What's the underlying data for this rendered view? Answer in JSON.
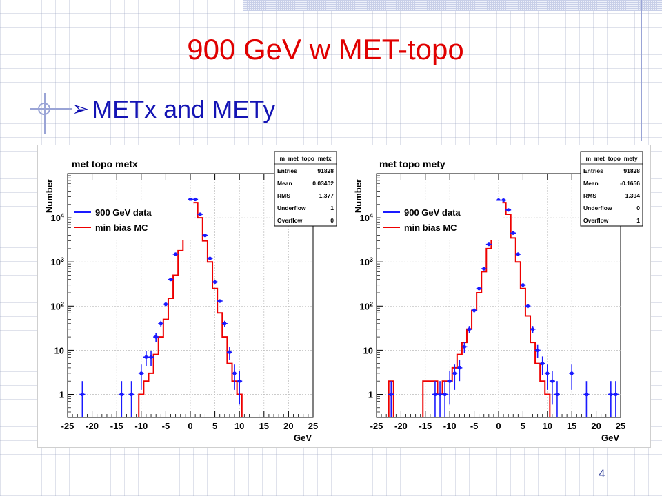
{
  "slide": {
    "title": "900 GeV w MET-topo",
    "bullet": "METx and METy",
    "page_number": "4"
  },
  "colors": {
    "title": "#e00000",
    "bullet_text": "#1414b4",
    "data_points": "#1a1aff",
    "mc_line": "#ee0000"
  },
  "chart_data": [
    {
      "type": "histogram",
      "title": "met topo metx",
      "xlabel": "GeV",
      "ylabel": "Number",
      "xlim": [
        -25,
        25
      ],
      "ylim": [
        0.3,
        100000
      ],
      "yscale": "log",
      "grid": true,
      "x_ticks": [
        "-25",
        "-20",
        "-15",
        "-10",
        "-5",
        "0",
        "5",
        "10",
        "15",
        "20",
        "25"
      ],
      "y_ticks": [
        "1",
        "10",
        "10²",
        "10³",
        "10⁴"
      ],
      "legend_position": "top-left",
      "legend": [
        "900 GeV data",
        "min bias MC"
      ],
      "stats": {
        "name": "m_met_topo_metx",
        "rows": [
          {
            "label": "Entries",
            "value": "91828"
          },
          {
            "label": "Mean",
            "value": "0.03402"
          },
          {
            "label": "RMS",
            "value": "1.377"
          },
          {
            "label": "Underflow",
            "value": "1"
          },
          {
            "label": "Overflow",
            "value": "0"
          }
        ]
      },
      "series": [
        {
          "name": "900 GeV data",
          "style": "points",
          "x": [
            -22,
            -14,
            -12,
            -10,
            -9,
            -8,
            -7,
            -6,
            -5,
            -4,
            -3,
            -2,
            -1,
            0,
            1,
            2,
            3,
            4,
            5,
            6,
            7,
            8,
            9,
            10
          ],
          "y": [
            1,
            1,
            1,
            3,
            7,
            7,
            20,
            40,
            110,
            400,
            1500,
            4500,
            16000,
            26000,
            26000,
            12000,
            4000,
            1200,
            350,
            130,
            40,
            9,
            3,
            2
          ]
        },
        {
          "name": "min bias MC",
          "style": "step",
          "bin_width": 1,
          "x": [
            -10,
            -9,
            -8,
            -7,
            -6,
            -5,
            -4,
            -3,
            -2,
            -1,
            0,
            1,
            2,
            3,
            4,
            5,
            6,
            7,
            8,
            9,
            10
          ],
          "y": [
            1,
            2,
            3,
            8,
            20,
            50,
            150,
            500,
            1800,
            5500,
            20000,
            22000,
            10000,
            3000,
            1000,
            250,
            70,
            20,
            5,
            2,
            1
          ]
        }
      ]
    },
    {
      "type": "histogram",
      "title": "met topo mety",
      "xlabel": "GeV",
      "ylabel": "Number",
      "xlim": [
        -25,
        25
      ],
      "ylim": [
        0.3,
        100000
      ],
      "yscale": "log",
      "grid": true,
      "x_ticks": [
        "-25",
        "-20",
        "-15",
        "-10",
        "-5",
        "0",
        "5",
        "10",
        "15",
        "20",
        "25"
      ],
      "y_ticks": [
        "1",
        "10",
        "10²",
        "10³",
        "10⁴"
      ],
      "legend_position": "top-left",
      "legend": [
        "900 GeV data",
        "min bias MC"
      ],
      "stats": {
        "name": "m_met_topo_mety",
        "rows": [
          {
            "label": "Entries",
            "value": "91828"
          },
          {
            "label": "Mean",
            "value": "-0.1656"
          },
          {
            "label": "RMS",
            "value": "1.394"
          },
          {
            "label": "Underflow",
            "value": "0"
          },
          {
            "label": "Overflow",
            "value": "1"
          }
        ]
      },
      "series": [
        {
          "name": "900 GeV data",
          "style": "points",
          "x": [
            -22,
            -13,
            -12,
            -11,
            -10,
            -9,
            -8,
            -7,
            -6,
            -5,
            -4,
            -3,
            -2,
            -1,
            0,
            1,
            2,
            3,
            4,
            5,
            6,
            7,
            8,
            9,
            10,
            11,
            12,
            15,
            18,
            23,
            24
          ],
          "y": [
            1,
            1,
            1,
            1,
            2,
            3,
            4,
            12,
            30,
            80,
            250,
            700,
            2500,
            8000,
            25000,
            25000,
            15000,
            4500,
            1500,
            300,
            100,
            30,
            10,
            5,
            3,
            2,
            1,
            3,
            1,
            1,
            1
          ],
          "x_note": "bin centers"
        },
        {
          "name": "min bias MC",
          "style": "step",
          "bin_width": 1,
          "x": [
            -22,
            -15,
            -14,
            -13,
            -12,
            -11,
            -10,
            -9,
            -8,
            -7,
            -6,
            -5,
            -4,
            -3,
            -2,
            -1,
            0,
            1,
            2,
            3,
            4,
            5,
            6,
            7,
            8,
            9,
            10
          ],
          "y": [
            2,
            2,
            2,
            2,
            1,
            2,
            2,
            4,
            8,
            15,
            30,
            80,
            200,
            600,
            2000,
            7000,
            20000,
            22000,
            12000,
            3500,
            1000,
            250,
            60,
            15,
            5,
            2,
            1
          ]
        }
      ]
    }
  ]
}
